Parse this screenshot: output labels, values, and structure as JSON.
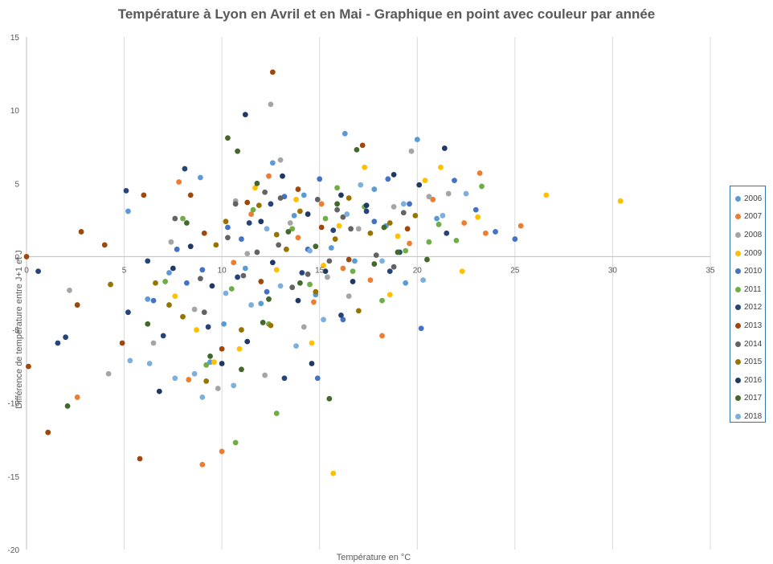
{
  "chart_data": {
    "type": "scatter",
    "title": "Température à Lyon en Avril et en Mai - Graphique en point avec couleur par année",
    "xlabel": "Température  en °C",
    "ylabel": "Différence de température entre J+1 et J",
    "xlim": [
      0,
      35
    ],
    "ylim": [
      -20,
      15
    ],
    "xticks": [
      "0",
      "5",
      "10",
      "15",
      "20",
      "25",
      "30",
      "35"
    ],
    "yticks": [
      "-20",
      "-15",
      "-10",
      "-5",
      "0",
      "5",
      "10",
      "15"
    ],
    "grid": "vertical",
    "legend_position": "right",
    "series": [
      {
        "name": "2006",
        "color": "#5b9bd5",
        "points": [
          [
            9.4,
            -7.2
          ],
          [
            11.2,
            -0.8
          ],
          [
            12.6,
            6.4
          ],
          [
            14.8,
            -2.6
          ],
          [
            16.3,
            8.4
          ],
          [
            17.8,
            4.6
          ],
          [
            18.4,
            2.1
          ],
          [
            20.0,
            8.0
          ],
          [
            8.9,
            5.4
          ],
          [
            10.1,
            -4.6
          ],
          [
            13.7,
            2.8
          ],
          [
            15.6,
            0.6
          ],
          [
            7.3,
            -1.1
          ],
          [
            5.2,
            3.1
          ],
          [
            12.0,
            -3.2
          ],
          [
            19.4,
            -1.8
          ],
          [
            21.0,
            2.6
          ],
          [
            6.2,
            -2.9
          ],
          [
            16.8,
            -0.3
          ],
          [
            14.2,
            4.2
          ]
        ]
      },
      {
        "name": "2007",
        "color": "#ed7d31",
        "points": [
          [
            9.0,
            -14.2
          ],
          [
            10.0,
            -13.3
          ],
          [
            2.6,
            -9.6
          ],
          [
            23.2,
            5.7
          ],
          [
            25.3,
            2.1
          ],
          [
            23.5,
            1.6
          ],
          [
            12.4,
            5.5
          ],
          [
            16.2,
            -0.8
          ],
          [
            17.6,
            -1.6
          ],
          [
            18.2,
            -5.4
          ],
          [
            20.8,
            3.9
          ],
          [
            13.9,
            1.3
          ],
          [
            11.5,
            2.9
          ],
          [
            8.3,
            -8.4
          ],
          [
            14.7,
            -3.1
          ],
          [
            7.8,
            5.1
          ],
          [
            19.6,
            0.9
          ],
          [
            22.4,
            2.3
          ],
          [
            15.1,
            3.6
          ],
          [
            10.6,
            -0.4
          ]
        ]
      },
      {
        "name": "2008",
        "color": "#a5a5a5",
        "points": [
          [
            12.5,
            10.4
          ],
          [
            13.0,
            6.6
          ],
          [
            19.7,
            7.2
          ],
          [
            2.2,
            -2.3
          ],
          [
            4.2,
            -8.0
          ],
          [
            9.8,
            -9.0
          ],
          [
            14.2,
            -4.8
          ],
          [
            17.0,
            1.9
          ],
          [
            18.8,
            3.4
          ],
          [
            11.3,
            0.2
          ],
          [
            15.4,
            -1.4
          ],
          [
            20.6,
            4.1
          ],
          [
            8.6,
            -3.6
          ],
          [
            6.5,
            -5.9
          ],
          [
            13.5,
            2.3
          ],
          [
            16.5,
            -2.7
          ],
          [
            21.6,
            4.3
          ],
          [
            10.7,
            3.8
          ],
          [
            12.2,
            -8.1
          ],
          [
            7.4,
            1.0
          ]
        ]
      },
      {
        "name": "2009",
        "color": "#ffc000",
        "points": [
          [
            30.4,
            3.8
          ],
          [
            26.6,
            4.2
          ],
          [
            15.7,
            -14.8
          ],
          [
            10.9,
            -6.3
          ],
          [
            14.6,
            -5.9
          ],
          [
            17.3,
            6.1
          ],
          [
            20.4,
            5.2
          ],
          [
            23.1,
            2.7
          ],
          [
            22.3,
            -1.0
          ],
          [
            8.7,
            -5.0
          ],
          [
            12.8,
            -0.9
          ],
          [
            18.6,
            -2.6
          ],
          [
            16.0,
            2.1
          ],
          [
            9.6,
            -7.2
          ],
          [
            13.8,
            3.9
          ],
          [
            19.0,
            1.4
          ],
          [
            21.2,
            6.1
          ],
          [
            11.7,
            4.7
          ],
          [
            7.6,
            -2.7
          ],
          [
            15.2,
            -0.6
          ]
        ]
      },
      {
        "name": "2010",
        "color": "#4472c4",
        "points": [
          [
            11.0,
            1.2
          ],
          [
            13.2,
            4.1
          ],
          [
            15.0,
            5.3
          ],
          [
            17.8,
            2.4
          ],
          [
            20.2,
            -4.9
          ],
          [
            23.0,
            3.2
          ],
          [
            24.0,
            1.7
          ],
          [
            25.0,
            1.2
          ],
          [
            6.5,
            -3.0
          ],
          [
            8.2,
            -1.8
          ],
          [
            10.3,
            2.0
          ],
          [
            12.3,
            -2.4
          ],
          [
            14.4,
            0.5
          ],
          [
            16.2,
            -4.3
          ],
          [
            18.5,
            5.3
          ],
          [
            9.0,
            -0.9
          ],
          [
            19.6,
            3.6
          ],
          [
            21.9,
            5.2
          ],
          [
            7.7,
            0.5
          ],
          [
            14.9,
            -8.3
          ]
        ]
      },
      {
        "name": "2011",
        "color": "#70ad47",
        "points": [
          [
            12.8,
            -10.7
          ],
          [
            10.7,
            -12.7
          ],
          [
            23.3,
            4.8
          ],
          [
            21.1,
            2.2
          ],
          [
            18.2,
            -3.0
          ],
          [
            15.9,
            4.7
          ],
          [
            13.6,
            1.9
          ],
          [
            9.2,
            -7.4
          ],
          [
            7.1,
            -1.7
          ],
          [
            16.7,
            -1.0
          ],
          [
            19.4,
            0.4
          ],
          [
            11.6,
            3.2
          ],
          [
            14.5,
            -1.9
          ],
          [
            20.6,
            1.0
          ],
          [
            17.3,
            3.4
          ],
          [
            22.0,
            1.1
          ],
          [
            8.0,
            2.6
          ],
          [
            12.4,
            -4.6
          ],
          [
            10.5,
            -2.2
          ],
          [
            15.3,
            2.6
          ]
        ]
      },
      {
        "name": "2012",
        "color": "#264478",
        "points": [
          [
            5.1,
            4.5
          ],
          [
            0.6,
            -1.0
          ],
          [
            1.6,
            -5.9
          ],
          [
            2.0,
            -5.5
          ],
          [
            5.2,
            -3.8
          ],
          [
            7.0,
            -5.4
          ],
          [
            9.3,
            -4.8
          ],
          [
            13.2,
            -8.3
          ],
          [
            18.6,
            -1.0
          ],
          [
            21.5,
            1.6
          ],
          [
            16.1,
            -4.0
          ],
          [
            11.4,
            2.3
          ],
          [
            14.1,
            -1.1
          ],
          [
            12.5,
            3.6
          ],
          [
            8.1,
            6.0
          ],
          [
            10.8,
            -1.4
          ],
          [
            15.7,
            1.8
          ],
          [
            17.4,
            3.1
          ],
          [
            19.1,
            0.3
          ],
          [
            6.2,
            -0.3
          ]
        ]
      },
      {
        "name": "2013",
        "color": "#9e480e",
        "points": [
          [
            12.6,
            12.6
          ],
          [
            0.0,
            0.0
          ],
          [
            0.1,
            -7.5
          ],
          [
            1.1,
            -12.0
          ],
          [
            5.8,
            -13.8
          ],
          [
            2.8,
            1.7
          ],
          [
            4.0,
            0.8
          ],
          [
            2.6,
            -3.3
          ],
          [
            4.9,
            -5.9
          ],
          [
            6.0,
            4.2
          ],
          [
            8.4,
            4.2
          ],
          [
            13.9,
            4.6
          ],
          [
            17.2,
            7.6
          ],
          [
            11.3,
            3.7
          ],
          [
            15.1,
            2.0
          ],
          [
            10.0,
            -6.3
          ],
          [
            9.1,
            1.6
          ],
          [
            16.5,
            -0.2
          ],
          [
            19.5,
            1.9
          ],
          [
            12.0,
            -1.7
          ]
        ]
      },
      {
        "name": "2014",
        "color": "#636363",
        "points": [
          [
            14.4,
            -1.2
          ],
          [
            13.0,
            4.0
          ],
          [
            16.6,
            1.9
          ],
          [
            11.8,
            0.3
          ],
          [
            9.1,
            -3.8
          ],
          [
            7.6,
            2.6
          ],
          [
            10.3,
            1.3
          ],
          [
            12.2,
            4.4
          ],
          [
            15.9,
            3.2
          ],
          [
            17.9,
            0.1
          ],
          [
            18.8,
            -0.7
          ],
          [
            8.9,
            -1.5
          ],
          [
            13.6,
            -2.1
          ],
          [
            14.9,
            3.9
          ],
          [
            16.2,
            2.7
          ],
          [
            11.1,
            -1.3
          ],
          [
            12.9,
            0.8
          ],
          [
            15.5,
            -0.3
          ],
          [
            10.7,
            3.6
          ],
          [
            19.3,
            3.0
          ]
        ]
      },
      {
        "name": "2015",
        "color": "#997300",
        "points": [
          [
            9.2,
            -8.5
          ],
          [
            12.5,
            -4.7
          ],
          [
            14.0,
            3.1
          ],
          [
            15.8,
            1.2
          ],
          [
            17.0,
            -3.7
          ],
          [
            18.6,
            2.3
          ],
          [
            11.0,
            -5.0
          ],
          [
            8.0,
            -4.1
          ],
          [
            6.6,
            -1.8
          ],
          [
            4.3,
            -1.9
          ],
          [
            13.3,
            0.5
          ],
          [
            10.2,
            2.4
          ],
          [
            16.5,
            4.0
          ],
          [
            19.9,
            2.8
          ],
          [
            12.8,
            1.5
          ],
          [
            7.3,
            -3.3
          ],
          [
            14.8,
            -2.4
          ],
          [
            9.7,
            0.8
          ],
          [
            17.6,
            1.6
          ],
          [
            11.9,
            3.5
          ]
        ]
      },
      {
        "name": "2016",
        "color": "#203864",
        "points": [
          [
            11.2,
            9.7
          ],
          [
            13.1,
            5.5
          ],
          [
            16.1,
            4.2
          ],
          [
            18.8,
            5.6
          ],
          [
            21.4,
            7.4
          ],
          [
            6.8,
            -9.2
          ],
          [
            10.0,
            -7.3
          ],
          [
            11.3,
            -5.8
          ],
          [
            14.6,
            -7.3
          ],
          [
            12.0,
            2.4
          ],
          [
            13.9,
            -3.0
          ],
          [
            15.3,
            -1.0
          ],
          [
            9.5,
            -2.0
          ],
          [
            8.4,
            0.7
          ],
          [
            17.4,
            3.5
          ],
          [
            20.1,
            4.9
          ],
          [
            12.6,
            -0.4
          ],
          [
            14.4,
            2.9
          ],
          [
            16.7,
            -1.7
          ],
          [
            7.5,
            -0.8
          ]
        ]
      },
      {
        "name": "2017",
        "color": "#43682b",
        "points": [
          [
            10.3,
            8.1
          ],
          [
            10.8,
            7.2
          ],
          [
            2.1,
            -10.2
          ],
          [
            15.5,
            -9.7
          ],
          [
            11.0,
            -7.7
          ],
          [
            12.1,
            -4.5
          ],
          [
            14.0,
            -1.8
          ],
          [
            16.9,
            7.3
          ],
          [
            19.0,
            0.3
          ],
          [
            9.4,
            -6.8
          ],
          [
            13.4,
            1.7
          ],
          [
            15.9,
            3.6
          ],
          [
            17.8,
            -0.5
          ],
          [
            8.2,
            2.3
          ],
          [
            20.5,
            -0.2
          ],
          [
            12.4,
            -2.9
          ],
          [
            11.8,
            5.0
          ],
          [
            6.2,
            -4.6
          ],
          [
            14.8,
            0.7
          ],
          [
            18.3,
            2.0
          ]
        ]
      },
      {
        "name": "2018",
        "color": "#7cafdd",
        "points": [
          [
            10.6,
            -8.8
          ],
          [
            9.0,
            -9.6
          ],
          [
            6.3,
            -7.3
          ],
          [
            7.6,
            -8.3
          ],
          [
            8.6,
            -8.0
          ],
          [
            5.3,
            -7.1
          ],
          [
            11.5,
            -3.3
          ],
          [
            13.8,
            -6.1
          ],
          [
            15.2,
            -4.3
          ],
          [
            16.4,
            2.9
          ],
          [
            17.1,
            4.9
          ],
          [
            19.3,
            3.6
          ],
          [
            21.3,
            2.8
          ],
          [
            22.5,
            4.3
          ],
          [
            14.5,
            0.4
          ],
          [
            12.3,
            1.9
          ],
          [
            10.2,
            -2.5
          ],
          [
            18.2,
            -0.3
          ],
          [
            20.3,
            -1.6
          ],
          [
            13.0,
            -2.0
          ]
        ]
      }
    ]
  }
}
